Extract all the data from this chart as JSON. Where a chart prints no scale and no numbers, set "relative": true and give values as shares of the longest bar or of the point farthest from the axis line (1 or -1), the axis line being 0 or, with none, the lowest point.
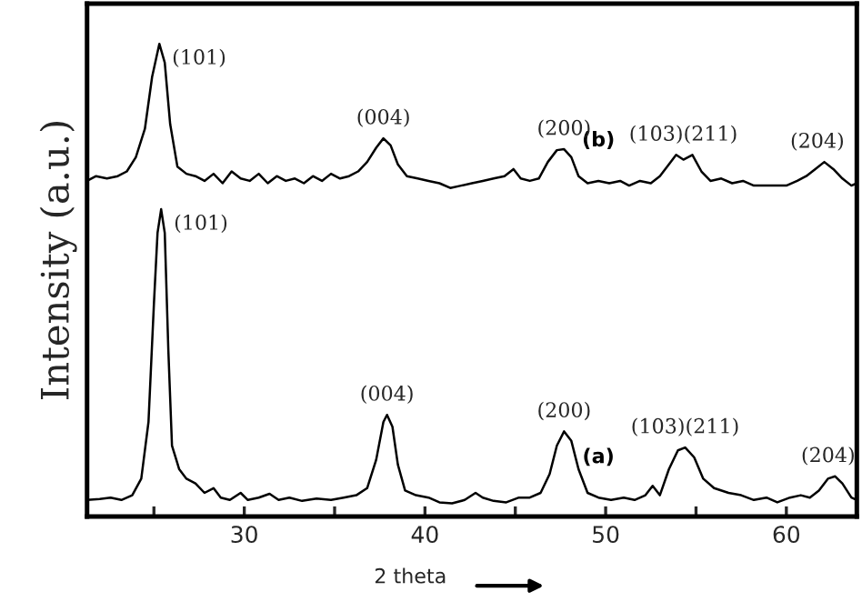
{
  "chart_data": {
    "type": "line",
    "relative": true,
    "xlabel": "2 theta",
    "ylabel": "Intensity (a.u.)",
    "tick_labels": "x",
    "grid": false,
    "marker": "none",
    "line_style": "solid",
    "xlim": [
      21.3,
      63.9
    ],
    "xticks": [
      {
        "value": 25,
        "label": null
      },
      30,
      {
        "value": 35,
        "label": null
      },
      40,
      {
        "value": 45,
        "label": null
      },
      50,
      {
        "value": 55,
        "label": null
      },
      60
    ],
    "series": [
      {
        "name": "(a)",
        "color": "#000000",
        "x": [
          21.3,
          22,
          22.6,
          23.2,
          23.8,
          24.3,
          24.7,
          25.0,
          25.2,
          25.4,
          25.6,
          25.8,
          26.0,
          26.4,
          26.8,
          27.3,
          27.8,
          28.3,
          28.7,
          29.2,
          29.8,
          30.2,
          30.8,
          31.4,
          31.9,
          32.5,
          33.2,
          34,
          34.8,
          35.5,
          36.2,
          36.8,
          37.3,
          37.7,
          37.9,
          38.2,
          38.5,
          38.9,
          39.5,
          40.2,
          40.8,
          41.5,
          42.2,
          42.8,
          43.2,
          43.8,
          44.5,
          45.2,
          45.8,
          46.4,
          46.9,
          47.3,
          47.7,
          48.1,
          48.5,
          49,
          49.6,
          50.3,
          51,
          51.6,
          52.2,
          52.6,
          53.0,
          53.5,
          54.0,
          54.4,
          54.9,
          55.4,
          56,
          56.8,
          57.5,
          58.2,
          58.9,
          59.5,
          60.2,
          60.8,
          61.3,
          61.8,
          62.3,
          62.7,
          63.1,
          63.6,
          63.9
        ],
        "values": [
          0.035,
          0.037,
          0.04,
          0.035,
          0.045,
          0.08,
          0.2,
          0.45,
          0.6,
          0.65,
          0.6,
          0.35,
          0.15,
          0.1,
          0.08,
          0.07,
          0.05,
          0.06,
          0.04,
          0.035,
          0.05,
          0.035,
          0.04,
          0.048,
          0.035,
          0.04,
          0.033,
          0.038,
          0.035,
          0.04,
          0.045,
          0.06,
          0.12,
          0.2,
          0.215,
          0.19,
          0.11,
          0.055,
          0.045,
          0.04,
          0.03,
          0.028,
          0.035,
          0.05,
          0.04,
          0.033,
          0.03,
          0.04,
          0.04,
          0.05,
          0.09,
          0.15,
          0.18,
          0.16,
          0.1,
          0.05,
          0.04,
          0.035,
          0.04,
          0.035,
          0.045,
          0.065,
          0.045,
          0.1,
          0.14,
          0.146,
          0.125,
          0.08,
          0.06,
          0.05,
          0.045,
          0.035,
          0.04,
          0.03,
          0.04,
          0.045,
          0.04,
          0.055,
          0.08,
          0.085,
          0.07,
          0.04,
          0.035
        ]
      },
      {
        "name": "(b)",
        "color": "#000000",
        "x": [
          21.3,
          21.8,
          22.4,
          23,
          23.5,
          24.0,
          24.5,
          24.9,
          25.3,
          25.6,
          25.9,
          26.3,
          26.8,
          27.3,
          27.8,
          28.3,
          28.8,
          29.3,
          29.8,
          30.3,
          30.8,
          31.3,
          31.8,
          32.3,
          32.8,
          33.3,
          33.8,
          34.3,
          34.8,
          35.3,
          35.8,
          36.3,
          36.8,
          37.3,
          37.7,
          38.1,
          38.5,
          39,
          39.6,
          40.2,
          40.8,
          41.4,
          42,
          42.6,
          43.2,
          43.8,
          44.4,
          44.9,
          45.3,
          45.8,
          46.3,
          46.8,
          47.3,
          47.7,
          48.1,
          48.5,
          49,
          49.6,
          50.2,
          50.8,
          51.3,
          51.9,
          52.5,
          53.0,
          53.5,
          53.9,
          54.3,
          54.8,
          55.3,
          55.8,
          56.4,
          57,
          57.6,
          58.2,
          58.8,
          59.4,
          60,
          60.6,
          61.1,
          61.6,
          62.1,
          62.6,
          63.1,
          63.6,
          63.9
        ],
        "values": [
          0.71,
          0.72,
          0.715,
          0.72,
          0.73,
          0.76,
          0.82,
          0.93,
          1.0,
          0.96,
          0.83,
          0.74,
          0.725,
          0.72,
          0.71,
          0.725,
          0.705,
          0.73,
          0.715,
          0.71,
          0.725,
          0.705,
          0.72,
          0.71,
          0.715,
          0.705,
          0.72,
          0.71,
          0.725,
          0.715,
          0.72,
          0.73,
          0.75,
          0.78,
          0.8,
          0.785,
          0.745,
          0.72,
          0.715,
          0.71,
          0.705,
          0.695,
          0.7,
          0.705,
          0.71,
          0.715,
          0.72,
          0.735,
          0.715,
          0.71,
          0.715,
          0.75,
          0.775,
          0.777,
          0.76,
          0.72,
          0.705,
          0.71,
          0.705,
          0.71,
          0.7,
          0.71,
          0.705,
          0.72,
          0.745,
          0.765,
          0.755,
          0.765,
          0.73,
          0.71,
          0.715,
          0.705,
          0.71,
          0.7,
          0.7,
          0.7,
          0.7,
          0.71,
          0.72,
          0.735,
          0.75,
          0.735,
          0.715,
          0.7,
          0.705
        ]
      }
    ],
    "annotations": [
      {
        "text": "(101)",
        "x": 25.4,
        "y": 0.65
      },
      {
        "text": "(004)",
        "x": 37.9,
        "y": 0.215
      },
      {
        "text": "(200)",
        "x": 47.7,
        "y": 0.18
      },
      {
        "text": "(103)(211)",
        "x": 54.4,
        "y": 0.146
      },
      {
        "text": "(204)",
        "x": 62.7,
        "y": 0.085
      },
      {
        "text": "(101)",
        "x": 25.3,
        "y": 1.0
      },
      {
        "text": "(004)",
        "x": 37.7,
        "y": 0.8
      },
      {
        "text": "(200)",
        "x": 47.7,
        "y": 0.777
      },
      {
        "text": "(103)(211)",
        "x": 54.3,
        "y": 0.765
      },
      {
        "text": "(204)",
        "x": 62.1,
        "y": 0.75
      }
    ]
  }
}
